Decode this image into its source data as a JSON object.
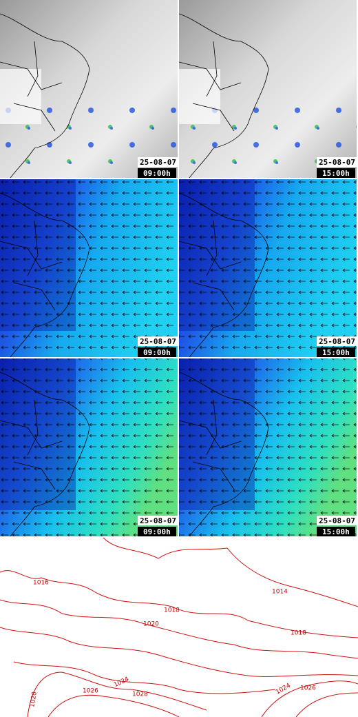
{
  "panels": [
    [
      {
        "date": "25-08-07",
        "time": "09:00h"
      },
      {
        "date": "25-08-07",
        "time": "15:00h"
      }
    ],
    [
      {
        "date": "25-08-07",
        "time": "09:00h"
      },
      {
        "date": "25-08-07",
        "time": "15:00h"
      }
    ],
    [
      {
        "date": "25-08-07",
        "time": "09:00h"
      },
      {
        "date": "25-08-07",
        "time": "15:00h"
      }
    ]
  ],
  "isobars": {
    "labels": [
      "1016",
      "1014",
      "1018",
      "1020",
      "1018",
      "1024",
      "1026",
      "1028",
      "1020",
      "1024",
      "1026"
    ]
  }
}
